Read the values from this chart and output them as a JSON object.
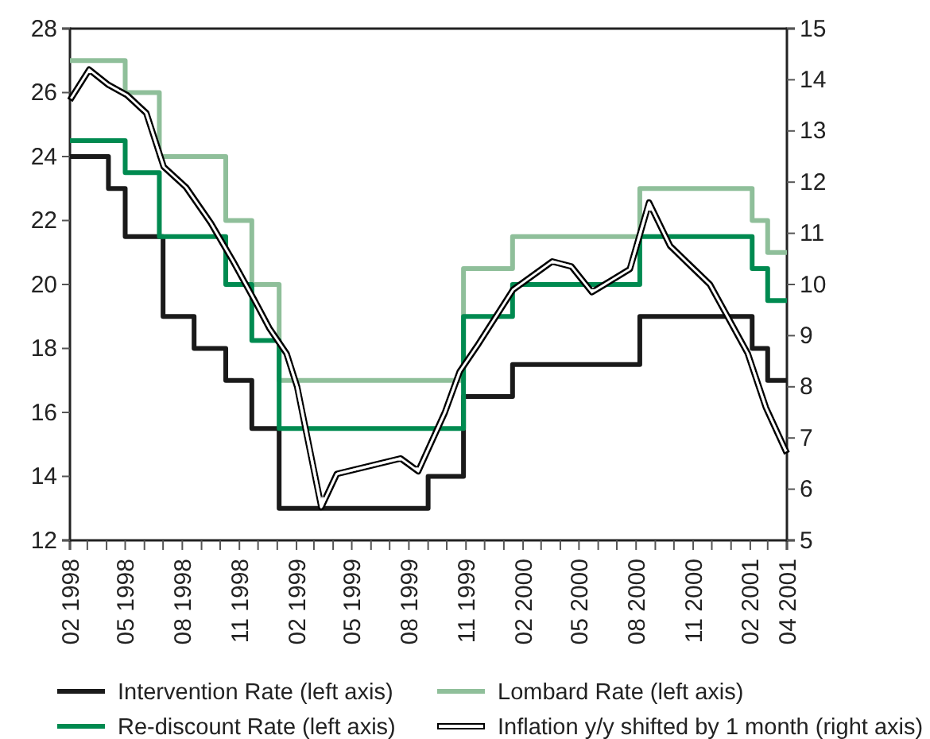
{
  "chart_data": {
    "type": "step",
    "xlim": [
      "1998-02",
      "2001-04"
    ],
    "xticks": [
      {
        "value": "1998-02",
        "label": "02 1998"
      },
      {
        "value": "1998-03",
        "label": null
      },
      {
        "value": "1998-04",
        "label": null
      },
      {
        "value": "1998-05",
        "label": "05 1998"
      },
      {
        "value": "1998-06",
        "label": null
      },
      {
        "value": "1998-07",
        "label": null
      },
      {
        "value": "1998-08",
        "label": "08 1998"
      },
      {
        "value": "1998-09",
        "label": null
      },
      {
        "value": "1998-10",
        "label": null
      },
      {
        "value": "1998-11",
        "label": "11 1998"
      },
      {
        "value": "1998-12",
        "label": null
      },
      {
        "value": "1999-01",
        "label": null
      },
      {
        "value": "1999-02",
        "label": "02 1999"
      },
      {
        "value": "1999-03",
        "label": null
      },
      {
        "value": "1999-04",
        "label": null
      },
      {
        "value": "1999-05",
        "label": "05 1999"
      },
      {
        "value": "1999-06",
        "label": null
      },
      {
        "value": "1999-07",
        "label": null
      },
      {
        "value": "1999-08",
        "label": "08 1999"
      },
      {
        "value": "1999-09",
        "label": null
      },
      {
        "value": "1999-10",
        "label": null
      },
      {
        "value": "1999-11",
        "label": "11 1999"
      },
      {
        "value": "1999-12",
        "label": null
      },
      {
        "value": "2000-01",
        "label": null
      },
      {
        "value": "2000-02",
        "label": "02 2000"
      },
      {
        "value": "2000-03",
        "label": null
      },
      {
        "value": "2000-04",
        "label": null
      },
      {
        "value": "2000-05",
        "label": "05 2000"
      },
      {
        "value": "2000-06",
        "label": null
      },
      {
        "value": "2000-07",
        "label": null
      },
      {
        "value": "2000-08",
        "label": "08 2000"
      },
      {
        "value": "2000-09",
        "label": null
      },
      {
        "value": "2000-10",
        "label": null
      },
      {
        "value": "2000-11",
        "label": "11 2000"
      },
      {
        "value": "2000-12",
        "label": null
      },
      {
        "value": "2001-01",
        "label": null
      },
      {
        "value": "2001-02",
        "label": "02 2001"
      },
      {
        "value": "2001-03",
        "label": null
      },
      {
        "value": "2001-04",
        "label": "04 2001"
      }
    ],
    "ylim": [
      12,
      28
    ],
    "yticks": [
      12,
      14,
      16,
      18,
      20,
      22,
      24,
      26,
      28
    ],
    "y2lim": [
      5,
      15
    ],
    "y2ticks": [
      5,
      6,
      7,
      8,
      9,
      10,
      11,
      12,
      13,
      14,
      15
    ],
    "legend": "bottom",
    "grid": false,
    "series": [
      {
        "name": "Intervention Rate (left axis)",
        "color": "#1a1a1a",
        "x": [
          "1998-02-01",
          "1998-04-04",
          "1998-05-01",
          "1998-07-01",
          "1998-08-20",
          "1998-10-10",
          "1998-11-21",
          "1999-01-04",
          "1999-09-01",
          "1999-10-28",
          "2000-01-15",
          "2000-08-07",
          "2001-02-04",
          "2001-03-01",
          "2001-04-01"
        ],
        "values": [
          24,
          23,
          21.5,
          19,
          18,
          17,
          15.5,
          13,
          14,
          16.5,
          17.5,
          19,
          18,
          17,
          17
        ]
      },
      {
        "name": "Lombard Rate (left axis)",
        "color": "#8fbf9a",
        "x": [
          "1998-02-01",
          "1998-05-01",
          "1998-06-25",
          "1998-10-10",
          "1998-11-21",
          "1999-01-04",
          "1999-10-28",
          "2000-01-15",
          "2000-08-07",
          "2001-02-04",
          "2001-03-01",
          "2001-04-01"
        ],
        "values": [
          27,
          26,
          24,
          22,
          20,
          17,
          20.5,
          21.5,
          23,
          22,
          21,
          21
        ]
      },
      {
        "name": "Re-discount Rate (left axis)",
        "color": "#008a50",
        "x": [
          "1998-02-01",
          "1998-05-01",
          "1998-06-25",
          "1998-10-10",
          "1998-11-21",
          "1999-01-04",
          "1999-10-28",
          "2000-01-15",
          "2000-08-07",
          "2001-02-04",
          "2001-03-01",
          "2001-04-01"
        ],
        "values": [
          24.5,
          23.5,
          21.5,
          20,
          18.25,
          15.5,
          19,
          20,
          21.5,
          20.5,
          19.5,
          19.5
        ]
      },
      {
        "name": "Inflation y/y shifted by 1 month (right axis)",
        "type": "line",
        "axis": "y2",
        "color": "#000000",
        "x": [
          "1998-02-01",
          "1998-03-04",
          "1998-04-04",
          "1998-05-04",
          "1998-06-04",
          "1998-07-02",
          "1998-08-07",
          "1998-09-16",
          "1998-10-22",
          "1998-11-25",
          "1998-12-19",
          "1999-01-16",
          "1999-02-02",
          "1999-03-13",
          "1999-04-07",
          "1999-07-19",
          "1999-08-16",
          "1999-09-28",
          "1999-10-22",
          "1999-11-19",
          "2000-01-16",
          "2000-03-19",
          "2000-04-19",
          "2000-05-22",
          "2000-07-22",
          "2000-08-22",
          "2000-09-25",
          "2000-11-28",
          "2001-01-28",
          "2001-02-26",
          "2001-04-01"
        ],
        "values": [
          13.6,
          14.2,
          13.9,
          13.7,
          13.35,
          12.3,
          11.9,
          11.2,
          10.45,
          9.7,
          9.15,
          8.65,
          8.0,
          5.65,
          6.3,
          6.6,
          6.35,
          7.5,
          8.3,
          8.8,
          9.9,
          10.45,
          10.35,
          9.85,
          10.3,
          11.6,
          10.75,
          10.0,
          8.65,
          7.6,
          6.7
        ]
      }
    ]
  }
}
